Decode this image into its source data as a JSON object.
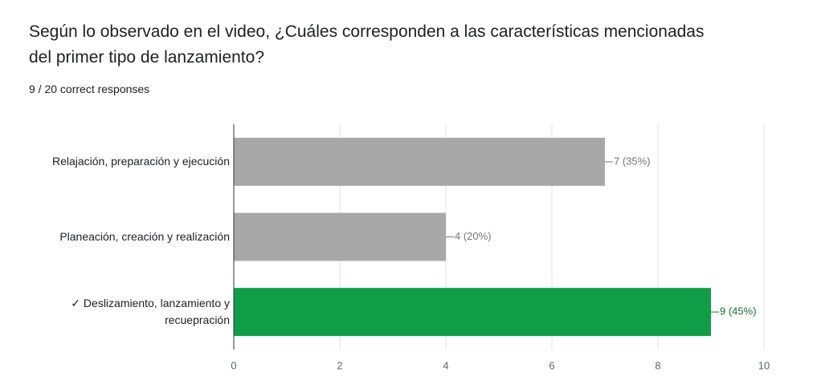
{
  "chart_data": {
    "type": "barh",
    "title": "Según lo observado en el video, ¿Cuáles corresponden a las características mencionadas del primer tipo de lanzamiento?",
    "subtitle": "9 / 20 correct responses",
    "categories": [
      "Relajación, preparación y ejecución",
      "Planeación, creación y realización",
      "✓ Deslizamiento, lanzamiento y recuepración"
    ],
    "values": [
      7,
      4,
      9
    ],
    "value_labels": [
      "7 (35%)",
      "4 (20%)",
      "9 (45%)"
    ],
    "colors": [
      "#a8a8a8",
      "#a8a8a8",
      "#0f9d48"
    ],
    "value_label_colors": [
      "#757575",
      "#757575",
      "#137333"
    ],
    "xlim": [
      0,
      10
    ],
    "xticks": [
      0,
      2,
      4,
      6,
      8,
      10
    ],
    "grid": true
  }
}
